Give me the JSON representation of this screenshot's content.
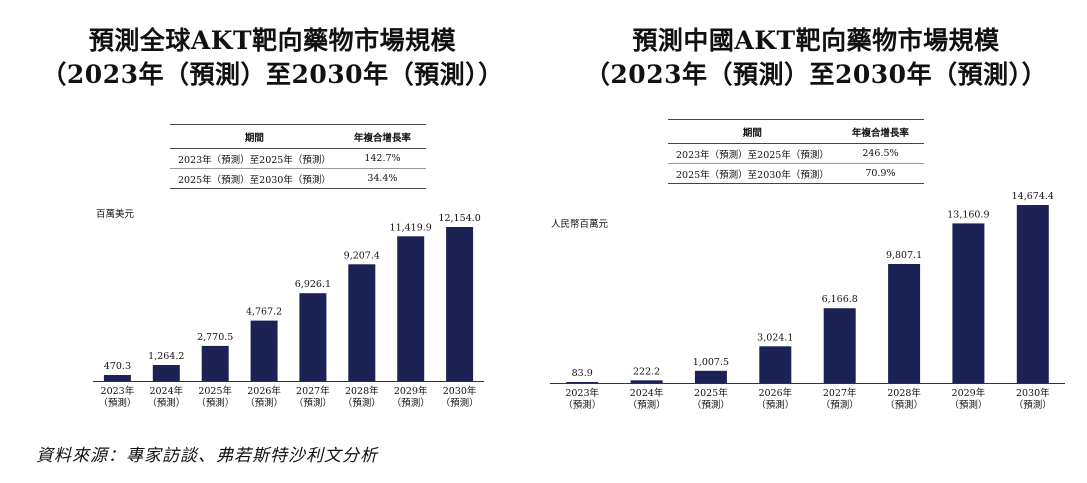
{
  "source": "資料來源：專家訪談、弗若斯特沙利文分析",
  "chart_data": [
    {
      "type": "bar",
      "title": "預測全球AKT靶向藥物市場規模",
      "subtitle": "（2023年（預測）至2030年（預測））",
      "ylabel": "百萬美元",
      "xlabel": "",
      "categories": [
        "2023年",
        "2024年",
        "2025年",
        "2026年",
        "2027年",
        "2028年",
        "2029年",
        "2030年"
      ],
      "category_note": "（預測）",
      "values": [
        470.3,
        1264.2,
        2770.5,
        4767.2,
        6926.1,
        9207.4,
        11419.9,
        12154.0
      ],
      "value_labels": [
        "470.3",
        "1,264.2",
        "2,770.5",
        "4,767.2",
        "6,926.1",
        "9,207.4",
        "11,419.9",
        "12,154.0"
      ],
      "ylim": [
        0,
        12154.0
      ],
      "grid": false,
      "bar_color": "#1c2354",
      "cagr_table": {
        "headers": [
          "期間",
          "年複合增長率"
        ],
        "rows": [
          {
            "period": "2023年（預測）至2025年（預測）",
            "rate": "142.7%"
          },
          {
            "period": "2025年（預測）至2030年（預測）",
            "rate": "34.4%"
          }
        ]
      }
    },
    {
      "type": "bar",
      "title": "預測中國AKT靶向藥物市場規模",
      "subtitle": "（2023年（預測）至2030年（預測））",
      "ylabel": "人民幣百萬元",
      "xlabel": "",
      "categories": [
        "2023年",
        "2024年",
        "2025年",
        "2026年",
        "2027年",
        "2028年",
        "2029年",
        "2030年"
      ],
      "category_note": "（預測）",
      "values": [
        83.9,
        222.2,
        1007.5,
        3024.1,
        6166.8,
        9807.1,
        13160.9,
        14674.4
      ],
      "value_labels": [
        "83.9",
        "222.2",
        "1,007.5",
        "3,024.1",
        "6,166.8",
        "9,807.1",
        "13,160.9",
        "14,674.4"
      ],
      "ylim": [
        0,
        14674.4
      ],
      "grid": false,
      "bar_color": "#1c2354",
      "cagr_table": {
        "headers": [
          "期間",
          "年複合增長率"
        ],
        "rows": [
          {
            "period": "2023年（預測）至2025年（預測）",
            "rate": "246.5%"
          },
          {
            "period": "2025年（預測）至2030年（預測）",
            "rate": "70.9%"
          }
        ]
      }
    }
  ]
}
